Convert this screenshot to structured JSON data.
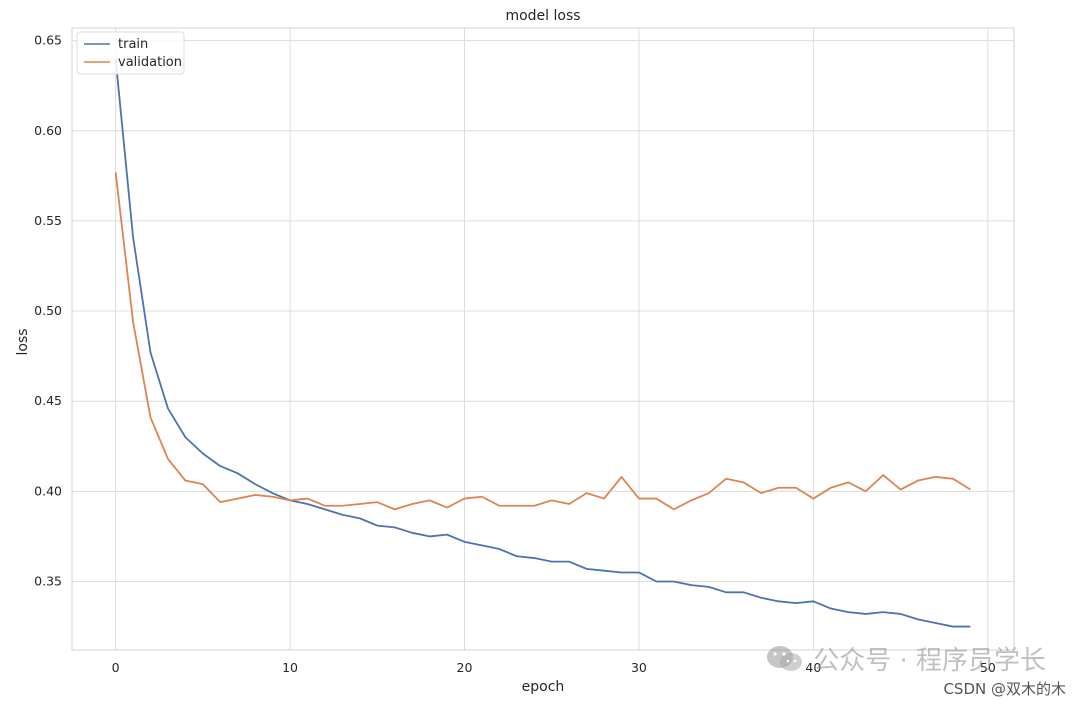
{
  "chart_data": {
    "type": "line",
    "title": "model loss",
    "xlabel": "epoch",
    "ylabel": "loss",
    "xlim": [
      -2.5,
      51.5
    ],
    "ylim": [
      0.312,
      0.657
    ],
    "xticks": [
      0,
      10,
      20,
      30,
      40,
      50
    ],
    "yticks": [
      0.35,
      0.4,
      0.45,
      0.5,
      0.55,
      0.6,
      0.65
    ],
    "ytick_labels": [
      "0.35",
      "0.40",
      "0.45",
      "0.50",
      "0.55",
      "0.60",
      "0.65"
    ],
    "xtick_labels": [
      "0",
      "10",
      "20",
      "30",
      "40",
      "50"
    ],
    "grid": true,
    "legend_position": "top-left",
    "x": [
      0,
      1,
      2,
      3,
      4,
      5,
      6,
      7,
      8,
      9,
      10,
      11,
      12,
      13,
      14,
      15,
      16,
      17,
      18,
      19,
      20,
      21,
      22,
      23,
      24,
      25,
      26,
      27,
      28,
      29,
      30,
      31,
      32,
      33,
      34,
      35,
      36,
      37,
      38,
      39,
      40,
      41,
      42,
      43,
      44,
      45,
      46,
      47,
      48,
      49
    ],
    "series": [
      {
        "name": "train",
        "color": "#4c72b0",
        "values": [
          0.64,
          0.541,
          0.477,
          0.446,
          0.43,
          0.421,
          0.414,
          0.41,
          0.404,
          0.399,
          0.395,
          0.393,
          0.39,
          0.387,
          0.385,
          0.381,
          0.38,
          0.377,
          0.375,
          0.376,
          0.372,
          0.37,
          0.368,
          0.364,
          0.363,
          0.361,
          0.361,
          0.357,
          0.356,
          0.355,
          0.355,
          0.35,
          0.35,
          0.348,
          0.347,
          0.344,
          0.344,
          0.341,
          0.339,
          0.338,
          0.339,
          0.335,
          0.333,
          0.332,
          0.333,
          0.332,
          0.329,
          0.327,
          0.325,
          0.325
        ]
      },
      {
        "name": "validation",
        "color": "#dd8452",
        "values": [
          0.577,
          0.494,
          0.441,
          0.418,
          0.406,
          0.404,
          0.394,
          0.396,
          0.398,
          0.397,
          0.395,
          0.396,
          0.392,
          0.392,
          0.393,
          0.394,
          0.39,
          0.393,
          0.395,
          0.391,
          0.396,
          0.397,
          0.392,
          0.392,
          0.392,
          0.395,
          0.393,
          0.399,
          0.396,
          0.408,
          0.396,
          0.396,
          0.39,
          0.395,
          0.399,
          0.407,
          0.405,
          0.399,
          0.402,
          0.402,
          0.396,
          0.402,
          0.405,
          0.4,
          0.409,
          0.401,
          0.406,
          0.408,
          0.407,
          0.401
        ]
      }
    ]
  },
  "watermark": {
    "text": "公众号 · 程序员学长",
    "icon": "wechat-icon"
  },
  "csdn_mark": "CSDN @双木的木"
}
